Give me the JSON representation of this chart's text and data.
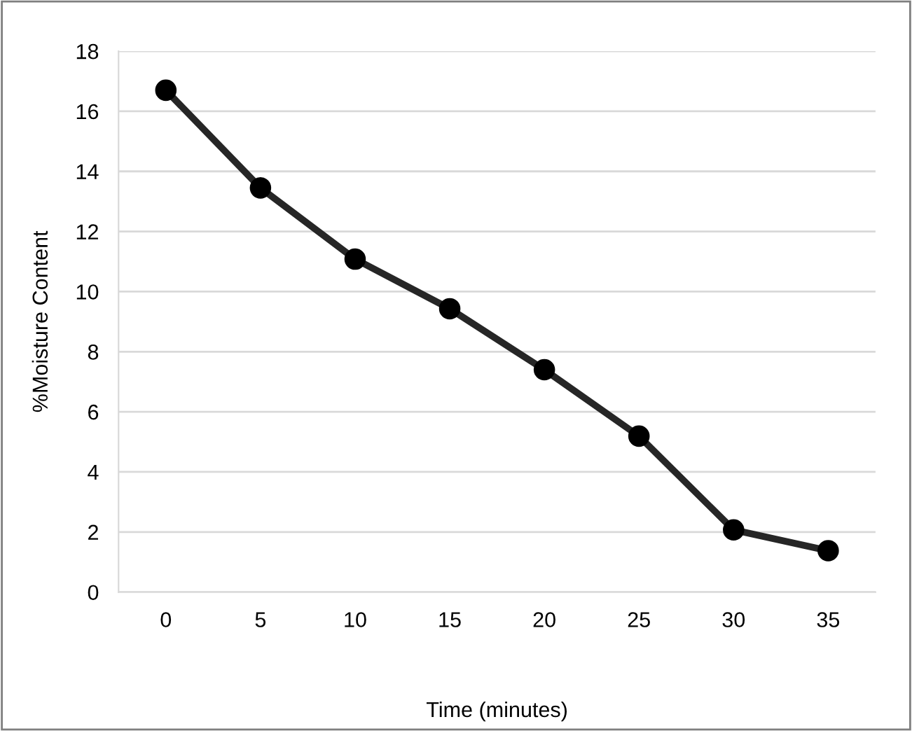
{
  "chart_data": {
    "type": "line",
    "xlabel": "Time (minutes)",
    "ylabel": "%Moisture Content",
    "categories": [
      "0",
      "5",
      "10",
      "15",
      "20",
      "25",
      "30",
      "35"
    ],
    "series": [
      {
        "color": "#262626",
        "values": [
          16.7,
          13.45,
          11.08,
          9.43,
          7.4,
          5.19,
          2.07,
          1.38
        ]
      }
    ],
    "ylim": [
      0,
      18
    ],
    "yticks": [
      0,
      2,
      4,
      6,
      8,
      10,
      12,
      14,
      16,
      18
    ],
    "grid": "y",
    "marker": "circle",
    "line_style": "solid"
  }
}
